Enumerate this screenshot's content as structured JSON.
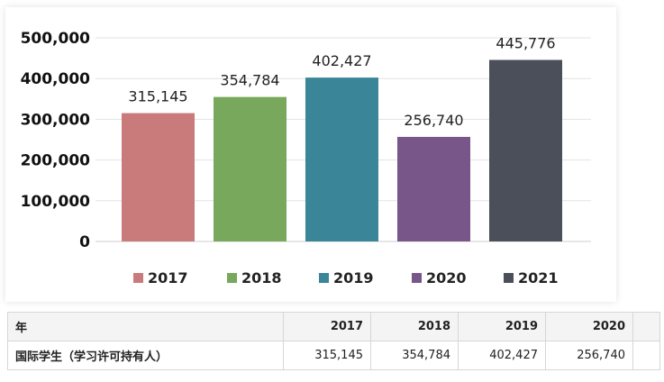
{
  "chart_data": {
    "type": "bar",
    "categories": [
      "2017",
      "2018",
      "2019",
      "2020",
      "2021"
    ],
    "values": [
      315145,
      354784,
      402427,
      256740,
      445776
    ],
    "value_labels": [
      "315,145",
      "354,784",
      "402,427",
      "256,740",
      "445,776"
    ],
    "colors": [
      "#c97b7b",
      "#78a85c",
      "#3a8598",
      "#785689",
      "#4a4f5a"
    ],
    "ylim": [
      0,
      500000
    ],
    "yticks": [
      0,
      100000,
      200000,
      300000,
      400000,
      500000
    ],
    "ytick_labels": [
      "0",
      "100,000",
      "200,000",
      "300,000",
      "400,000",
      "500,000"
    ],
    "grid": true,
    "legend_position": "bottom",
    "legend": [
      "2017",
      "2018",
      "2019",
      "2020",
      "2021"
    ]
  },
  "table": {
    "header": [
      "年",
      "2017",
      "2018",
      "2019",
      "2020",
      ""
    ],
    "rows": [
      [
        "国际学生（学习许可持有人）",
        "315,145",
        "354,784",
        "402,427",
        "256,740",
        ""
      ]
    ]
  }
}
